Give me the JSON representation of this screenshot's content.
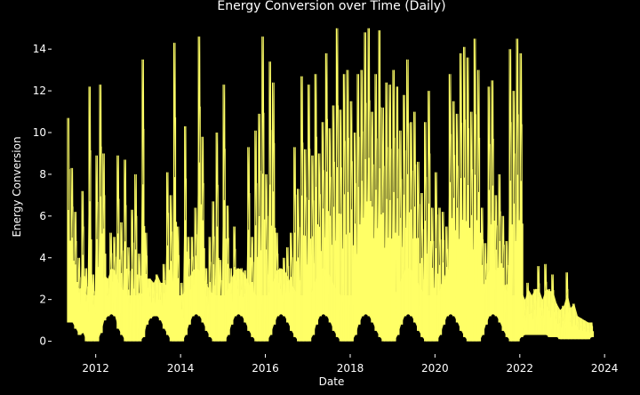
{
  "chart_data": {
    "type": "line",
    "title": "Energy Conversion over Time (Daily)",
    "xlabel": "Date",
    "ylabel": "Energy Conversion",
    "xlim": [
      "2011-01-01",
      "2024-06-01"
    ],
    "ylim": [
      -0.7,
      15.5
    ],
    "x_ticks": [
      "2012",
      "2014",
      "2016",
      "2018",
      "2020",
      "2022",
      "2024"
    ],
    "y_ticks": [
      "0",
      "2",
      "4",
      "6",
      "8",
      "10",
      "12",
      "14"
    ],
    "grid": false,
    "legend": "none",
    "background": "#000000",
    "line_color": "#ffff66",
    "series": [
      {
        "x_start": "2011-05-15",
        "x_end": "2023-09-10",
        "values": {
          "2011-05": [
            0.9,
            10.7
          ],
          "2011-06": [
            0.9,
            8.3
          ],
          "2011-07": [
            0.6,
            6.2
          ],
          "2011-08": [
            0.3,
            4.0
          ],
          "2011-09": [
            0.4,
            7.2
          ],
          "2011-10": [
            0.0,
            3.5
          ],
          "2011-11": [
            0.0,
            12.2
          ],
          "2011-12": [
            0.0,
            3.2
          ],
          "2012-01": [
            0.0,
            8.9
          ],
          "2012-02": [
            0.4,
            12.3
          ],
          "2012-03": [
            1.0,
            9.0
          ],
          "2012-04": [
            1.2,
            3.0
          ],
          "2012-05": [
            1.3,
            5.2
          ],
          "2012-06": [
            1.2,
            5.0
          ],
          "2012-07": [
            0.6,
            8.9
          ],
          "2012-08": [
            0.3,
            5.7
          ],
          "2012-09": [
            0.0,
            8.7
          ],
          "2012-10": [
            0.0,
            4.5
          ],
          "2012-11": [
            0.0,
            6.3
          ],
          "2012-12": [
            0.0,
            8.0
          ],
          "2013-01": [
            0.0,
            4.2
          ],
          "2013-02": [
            0.2,
            13.5
          ],
          "2013-03": [
            0.8,
            5.2
          ],
          "2013-04": [
            1.1,
            3.0
          ],
          "2013-05": [
            1.2,
            2.8
          ],
          "2013-06": [
            1.2,
            3.2
          ],
          "2013-07": [
            1.0,
            2.8
          ],
          "2013-08": [
            0.6,
            3.7
          ],
          "2013-09": [
            0.3,
            8.1
          ],
          "2013-10": [
            0.0,
            7.0
          ],
          "2013-11": [
            0.0,
            14.3
          ],
          "2013-12": [
            0.0,
            5.5
          ],
          "2014-01": [
            0.0,
            2.8
          ],
          "2014-02": [
            0.3,
            10.3
          ],
          "2014-03": [
            0.8,
            5.0
          ],
          "2014-04": [
            1.2,
            5.0
          ],
          "2014-05": [
            1.3,
            6.4
          ],
          "2014-06": [
            1.2,
            14.6
          ],
          "2014-07": [
            0.9,
            9.8
          ],
          "2014-08": [
            0.5,
            3.5
          ],
          "2014-09": [
            0.2,
            5.0
          ],
          "2014-10": [
            0.0,
            6.7
          ],
          "2014-11": [
            0.0,
            10.0
          ],
          "2014-12": [
            0.0,
            3.9
          ],
          "2015-01": [
            0.0,
            12.3
          ],
          "2015-02": [
            0.3,
            6.5
          ],
          "2015-03": [
            0.8,
            3.5
          ],
          "2015-04": [
            1.2,
            5.5
          ],
          "2015-05": [
            1.3,
            3.5
          ],
          "2015-06": [
            1.2,
            3.5
          ],
          "2015-07": [
            0.9,
            3.4
          ],
          "2015-08": [
            0.5,
            9.3
          ],
          "2015-09": [
            0.2,
            5.0
          ],
          "2015-10": [
            0.0,
            10.1
          ],
          "2015-11": [
            0.0,
            10.9
          ],
          "2015-12": [
            0.0,
            14.6
          ],
          "2016-01": [
            0.0,
            8.0
          ],
          "2016-02": [
            0.3,
            13.4
          ],
          "2016-03": [
            0.8,
            12.4
          ],
          "2016-04": [
            1.2,
            5.2
          ],
          "2016-05": [
            1.3,
            3.5
          ],
          "2016-06": [
            1.2,
            4.0
          ],
          "2016-07": [
            0.9,
            4.5
          ],
          "2016-08": [
            0.5,
            5.2
          ],
          "2016-09": [
            0.2,
            9.3
          ],
          "2016-10": [
            0.0,
            7.3
          ],
          "2016-11": [
            0.0,
            12.7
          ],
          "2016-12": [
            0.0,
            9.2
          ],
          "2017-01": [
            0.0,
            12.3
          ],
          "2017-02": [
            0.3,
            8.9
          ],
          "2017-03": [
            0.8,
            12.8
          ],
          "2017-04": [
            1.2,
            9.0
          ],
          "2017-05": [
            1.3,
            10.5
          ],
          "2017-06": [
            1.2,
            13.8
          ],
          "2017-07": [
            0.9,
            10.2
          ],
          "2017-08": [
            0.5,
            11.3
          ],
          "2017-09": [
            0.2,
            15.0
          ],
          "2017-10": [
            0.0,
            11.1
          ],
          "2017-11": [
            0.0,
            12.8
          ],
          "2017-12": [
            0.0,
            13.0
          ],
          "2018-01": [
            0.0,
            11.5
          ],
          "2018-02": [
            0.3,
            10.0
          ],
          "2018-03": [
            0.8,
            12.8
          ],
          "2018-04": [
            1.2,
            13.0
          ],
          "2018-05": [
            1.3,
            14.8
          ],
          "2018-06": [
            1.2,
            15.0
          ],
          "2018-07": [
            0.9,
            11.0
          ],
          "2018-08": [
            0.5,
            12.8
          ],
          "2018-09": [
            0.2,
            14.9
          ],
          "2018-10": [
            0.0,
            11.2
          ],
          "2018-11": [
            0.0,
            12.4
          ],
          "2018-12": [
            0.0,
            12.3
          ],
          "2019-01": [
            0.0,
            13.0
          ],
          "2019-02": [
            0.3,
            12.2
          ],
          "2019-03": [
            0.8,
            10.1
          ],
          "2019-04": [
            1.2,
            11.8
          ],
          "2019-05": [
            1.3,
            13.5
          ],
          "2019-06": [
            1.2,
            10.5
          ],
          "2019-07": [
            0.9,
            11.0
          ],
          "2019-08": [
            0.5,
            8.6
          ],
          "2019-09": [
            0.2,
            7.1
          ],
          "2019-10": [
            0.0,
            10.5
          ],
          "2019-11": [
            0.0,
            12.0
          ],
          "2019-12": [
            0.0,
            6.4
          ],
          "2020-01": [
            0.0,
            8.1
          ],
          "2020-02": [
            0.3,
            6.4
          ],
          "2020-03": [
            0.8,
            6.2
          ],
          "2020-04": [
            1.2,
            5.5
          ],
          "2020-05": [
            1.3,
            12.8
          ],
          "2020-06": [
            1.2,
            11.5
          ],
          "2020-07": [
            0.9,
            10.9
          ],
          "2020-08": [
            0.5,
            13.8
          ],
          "2020-09": [
            0.2,
            14.1
          ],
          "2020-10": [
            0.0,
            13.6
          ],
          "2020-11": [
            0.0,
            11.0
          ],
          "2020-12": [
            0.0,
            14.5
          ],
          "2021-01": [
            0.0,
            13.0
          ],
          "2021-02": [
            0.3,
            6.4
          ],
          "2021-03": [
            0.8,
            4.7
          ],
          "2021-04": [
            1.2,
            12.2
          ],
          "2021-05": [
            1.3,
            12.5
          ],
          "2021-06": [
            1.2,
            7.0
          ],
          "2021-07": [
            0.9,
            8.0
          ],
          "2021-08": [
            0.5,
            6.0
          ],
          "2021-09": [
            0.2,
            4.8
          ],
          "2021-10": [
            0.0,
            14.0
          ],
          "2021-11": [
            0.0,
            12.0
          ],
          "2021-12": [
            0.0,
            14.5
          ],
          "2022-01": [
            0.2,
            13.8
          ],
          "2022-02": [
            0.3,
            2.0
          ],
          "2022-03": [
            0.3,
            2.8
          ],
          "2022-04": [
            0.3,
            2.2
          ],
          "2022-05": [
            0.3,
            2.5
          ],
          "2022-06": [
            0.3,
            3.6
          ],
          "2022-07": [
            0.3,
            2.0
          ],
          "2022-08": [
            0.3,
            3.7
          ],
          "2022-09": [
            0.2,
            2.5
          ],
          "2022-10": [
            0.2,
            3.2
          ],
          "2022-11": [
            0.2,
            1.8
          ],
          "2022-12": [
            0.1,
            1.5
          ],
          "2023-01": [
            0.1,
            1.7
          ],
          "2023-02": [
            0.1,
            3.3
          ],
          "2023-03": [
            0.1,
            1.6
          ],
          "2023-04": [
            0.1,
            1.8
          ],
          "2023-05": [
            0.1,
            1.2
          ],
          "2023-06": [
            0.1,
            1.1
          ],
          "2023-07": [
            0.1,
            1.0
          ],
          "2023-08": [
            0.1,
            0.9
          ],
          "2023-09": [
            0.2,
            0.9
          ]
        }
      }
    ]
  }
}
